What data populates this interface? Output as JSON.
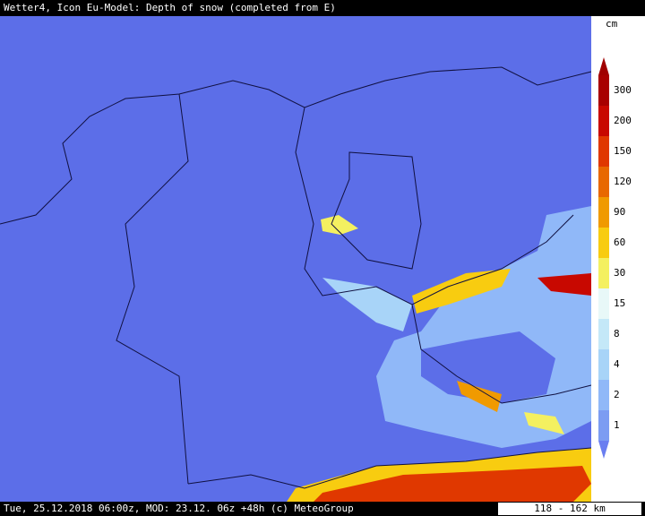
{
  "header": {
    "title": "Wetter4, Icon Eu-Model: Depth of snow (completed from E)"
  },
  "legend": {
    "unit": "cm",
    "below_color": "#6a7ef0",
    "above_color": "#a00000",
    "levels": [
      {
        "value": 1,
        "color": "#7c9cf2"
      },
      {
        "value": 2,
        "color": "#90b8f8"
      },
      {
        "value": 4,
        "color": "#a8d4f8"
      },
      {
        "value": 8,
        "color": "#c4e8f8"
      },
      {
        "value": 15,
        "color": "#e8f8f8"
      },
      {
        "value": 30,
        "color": "#f4f060"
      },
      {
        "value": 60,
        "color": "#f8cc10"
      },
      {
        "value": 90,
        "color": "#f09a00"
      },
      {
        "value": 120,
        "color": "#e86800"
      },
      {
        "value": 150,
        "color": "#e03800"
      },
      {
        "value": 200,
        "color": "#c80800"
      },
      {
        "value": 300,
        "color": "#a80000"
      }
    ]
  },
  "footer": {
    "info": "Tue, 25.12.2018 06:00z, MOD: 23.12. 06z +48h (c) MeteoGroup",
    "scale": "118 - 162 km"
  }
}
